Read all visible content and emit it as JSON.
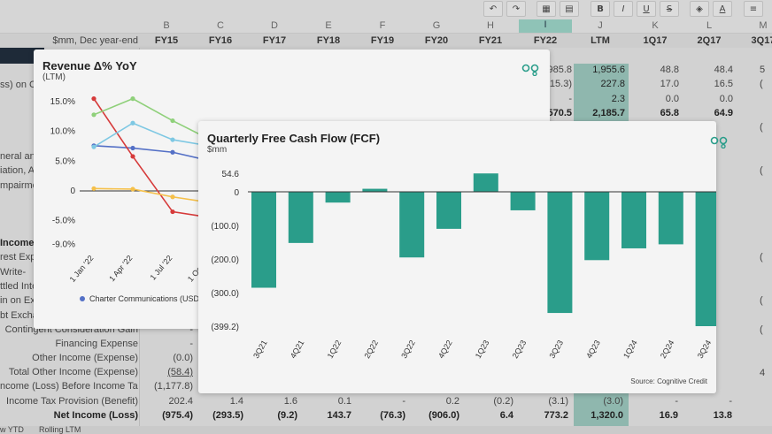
{
  "toolbar": {
    "icons": [
      "undo-icon",
      "redo-icon",
      "group-icon",
      "ungroup-icon",
      "bold-icon",
      "italic-icon",
      "underline-icon",
      "strikethrough-icon",
      "fill-color-icon",
      "font-color-icon",
      "align-icon"
    ],
    "bold_label": "B",
    "italic_label": "I",
    "underline_label": "U",
    "strike_label": "S",
    "font_color_label": "A"
  },
  "sheet": {
    "header_label": "$mm, Dec year-end",
    "column_letters": [
      "B",
      "C",
      "D",
      "E",
      "F",
      "G",
      "H",
      "I",
      "J",
      "K",
      "L",
      "M"
    ],
    "selected_column": "I",
    "period_headers": [
      "FY15",
      "FY16",
      "FY17",
      "FY18",
      "FY19",
      "FY20",
      "FY21",
      "FY22",
      "LTM",
      "1Q17",
      "2Q17",
      "3Q17"
    ],
    "partial_row_labels": [
      "ss) on Co",
      "neral and",
      "iation, A",
      "mpairmen",
      "Income",
      "rest Exp",
      "Write-",
      "ttled Inte",
      "in on Ex",
      "bt Excha"
    ],
    "right_partial_cells": [
      {
        "i": "985.8",
        "ltm": "1,955.6",
        "q1": "48.8",
        "q2": "48.4"
      },
      {
        "i": "415.3)",
        "ltm": "227.8",
        "q1": "17.0",
        "q2": "16.5"
      },
      {
        "i": "-",
        "ltm": "2.3",
        "q1": "0.0",
        "q2": "0.0"
      },
      {
        "i": "570.5",
        "ltm": "2,185.7",
        "q1": "65.8",
        "q2": "64.9"
      }
    ],
    "right_edge_marks": [
      "5",
      "(",
      "(",
      "(",
      "(",
      "(",
      "(",
      "4"
    ],
    "rows": [
      {
        "label": "Contingent Consideration Gain",
        "values": [
          "-",
          "",
          "",
          "",
          "",
          "",
          "",
          "",
          "",
          "",
          ""
        ]
      },
      {
        "label": "Financing Expense",
        "values": [
          "-",
          "",
          "",
          "",
          "",
          "",
          "",
          "",
          "",
          "",
          ""
        ]
      },
      {
        "label": "Other Income (Expense)",
        "values": [
          "(0.0)",
          "",
          "",
          "",
          "",
          "",
          "",
          "",
          "",
          "",
          ""
        ]
      },
      {
        "label": "Total Other Income (Expense)",
        "values": [
          "(58.4)",
          "",
          "",
          "",
          "",
          "",
          "",
          "",
          "",
          "",
          ""
        ]
      },
      {
        "label": "ncome (Loss) Before Income Taxes",
        "values": [
          "(1,177.8)",
          "",
          "",
          "",
          "",
          "",
          "",
          "",
          "",
          "",
          ""
        ]
      },
      {
        "label": "Income Tax Provision (Benefit)",
        "values": [
          "202.4",
          "1.4",
          "1.6",
          "0.1",
          "-",
          "0.2",
          "(0.2)",
          "(3.1)",
          "(3.0)",
          "-",
          "-"
        ]
      },
      {
        "label": "Net Income (Loss)",
        "values": [
          "(975.4)",
          "(293.5)",
          "(9.2)",
          "143.7",
          "(76.3)",
          "(906.0)",
          "6.4",
          "773.2",
          "1,320.0",
          "16.9",
          "13.8"
        ]
      }
    ],
    "bottom_tabs": [
      "w YTD",
      "Rolling LTM"
    ]
  },
  "revenue_chart": {
    "title": "Revenue Δ% YoY",
    "subtitle": "(LTM)",
    "legend_item": "Charter Communications (USD",
    "colors": {
      "blue": "#5470c6",
      "red": "#d63a3a",
      "green": "#8fd07a",
      "lightblue": "#7ec8e3",
      "yellow": "#f5c04a"
    }
  },
  "chart_data": [
    {
      "type": "line",
      "title": "Revenue Δ% YoY",
      "subtitle": "(LTM)",
      "x": [
        "1 Jan '22",
        "1 Apr '22",
        "1 Jul '22",
        "1 Oct '22"
      ],
      "y_ticks": [
        "15.0%",
        "10.0%",
        "5.0%",
        "0",
        "-5.0%",
        "-9.0%"
      ],
      "ylim": [
        -9.0,
        15.0
      ],
      "series": [
        {
          "name": "Charter Communications (USD",
          "color": "#5470c6",
          "values": [
            7.6,
            7.2,
            6.5,
            5.0
          ]
        },
        {
          "name": "",
          "color": "#d63a3a",
          "values": [
            15.5,
            5.8,
            -3.5,
            -4.5
          ]
        },
        {
          "name": "",
          "color": "#8fd07a",
          "values": [
            12.8,
            15.5,
            11.8,
            8.5
          ]
        },
        {
          "name": "",
          "color": "#7ec8e3",
          "values": [
            7.4,
            11.4,
            8.6,
            7.5
          ]
        },
        {
          "name": "",
          "color": "#f5c04a",
          "values": [
            0.4,
            0.3,
            -1.0,
            -2.0
          ]
        }
      ],
      "legend": "bottom-left"
    },
    {
      "type": "bar",
      "title": "Quarterly Free Cash Flow (FCF)",
      "subtitle": "$mm",
      "categories": [
        "3Q21",
        "4Q21",
        "1Q22",
        "2Q22",
        "3Q22",
        "4Q22",
        "1Q23",
        "2Q23",
        "3Q23",
        "4Q23",
        "1Q24",
        "2Q24",
        "3Q24"
      ],
      "values": [
        -285,
        -152,
        -32,
        9,
        -195,
        -110,
        54.6,
        -55,
        -360,
        -203,
        -168,
        -156,
        -399.2
      ],
      "y_ticks": [
        "54.6",
        "0",
        "(100.0)",
        "(200.0)",
        "(300.0)",
        "(399.2)"
      ],
      "ylim": [
        -399.2,
        54.6
      ],
      "bar_color": "#2a9d8a",
      "source": "Source: Cognitive Credit"
    }
  ]
}
